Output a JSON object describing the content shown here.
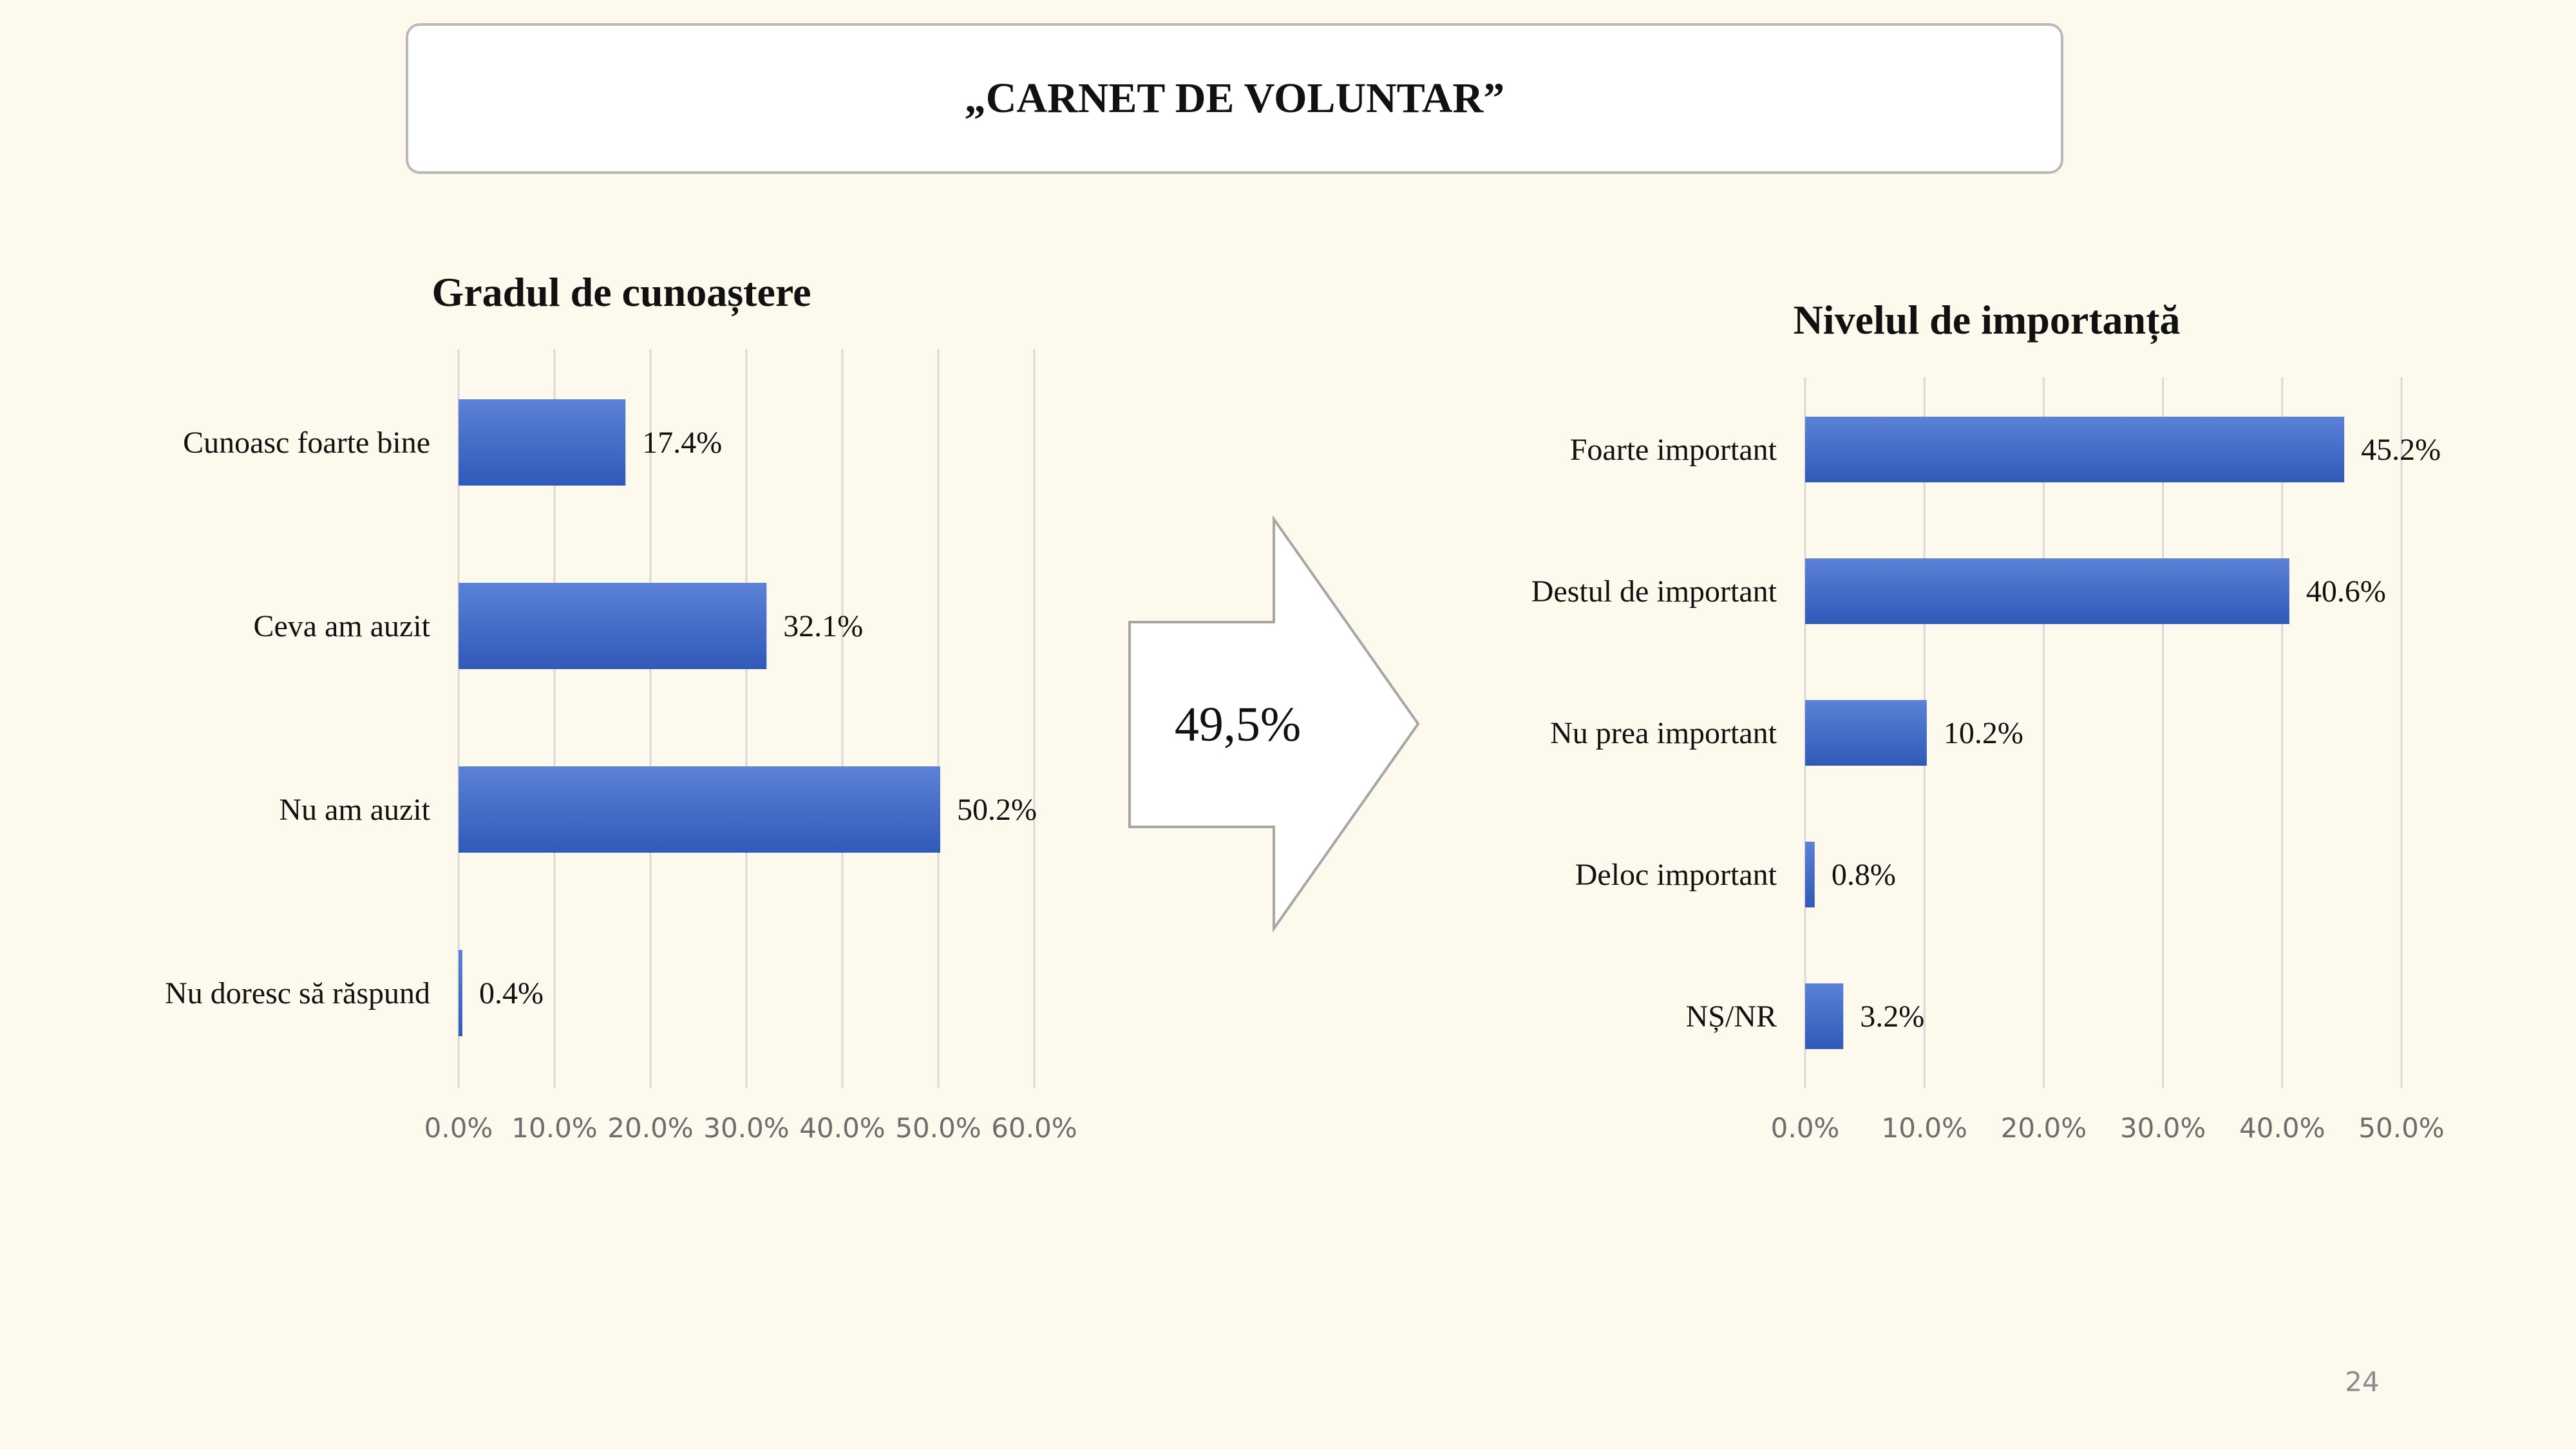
{
  "slide": {
    "title": "„CARNET DE VOLUNTAR”",
    "arrow_text": "49,5%",
    "page_number": "24"
  },
  "colors": {
    "background": "#fdf9ec",
    "bar_top": "#5b82d6",
    "bar_bottom": "#3059b9",
    "gridline": "#d9d9d9",
    "arrow_outline": "#a6a6a6"
  },
  "chart_data": [
    {
      "type": "bar",
      "orientation": "horizontal",
      "title": "Gradul de cunoaștere",
      "categories": [
        "Cunoasc foarte bine",
        "Ceva am auzit",
        "Nu am auzit",
        "Nu doresc să răspund"
      ],
      "values": [
        17.4,
        32.1,
        50.2,
        0.4
      ],
      "data_labels": [
        "17.4%",
        "32.1%",
        "50.2%",
        "0.4%"
      ],
      "xlim": [
        0,
        60
      ],
      "ticks": [
        "0.0%",
        "10.0%",
        "20.0%",
        "30.0%",
        "40.0%",
        "50.0%",
        "60.0%"
      ],
      "grid": true,
      "legend": "none"
    },
    {
      "type": "bar",
      "orientation": "horizontal",
      "title": "Nivelul de importanță",
      "categories": [
        "Foarte important",
        "Destul de important",
        "Nu prea important",
        "Deloc important",
        "NȘ/NR"
      ],
      "values": [
        45.2,
        40.6,
        10.2,
        0.8,
        3.2
      ],
      "data_labels": [
        "45.2%",
        "40.6%",
        "10.2%",
        "0.8%",
        "3.2%"
      ],
      "xlim": [
        0,
        50
      ],
      "ticks": [
        "0.0%",
        "10.0%",
        "20.0%",
        "30.0%",
        "40.0%",
        "50.0%"
      ],
      "grid": true,
      "legend": "none"
    }
  ]
}
